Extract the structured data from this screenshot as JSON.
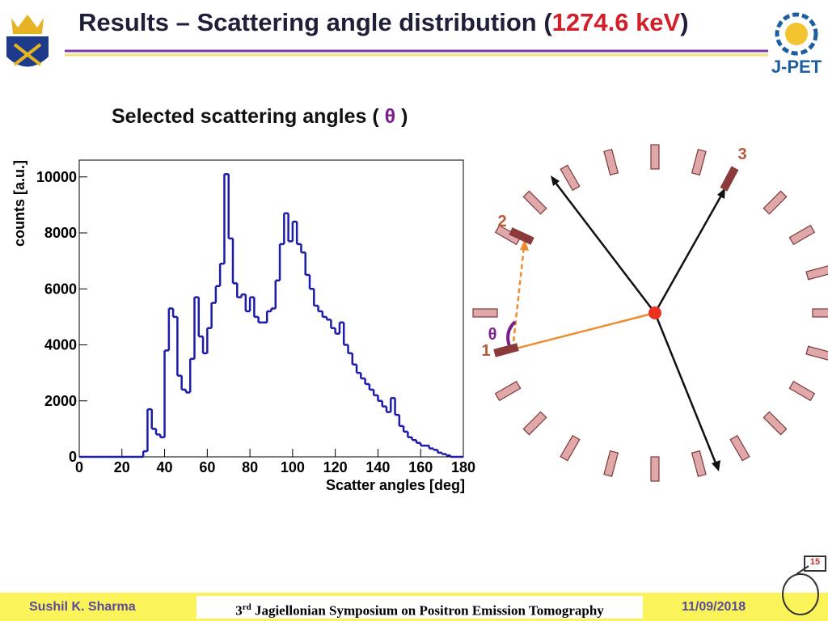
{
  "header": {
    "title_prefix": "Results – Scattering angle distribution (",
    "title_energy": "1274.6 keV",
    "title_suffix": ")",
    "logo_text": "J-PET"
  },
  "subtitle": {
    "prefix": "Selected scattering angles ( ",
    "symbol": "θ",
    "suffix": " )"
  },
  "diagram": {
    "labels": [
      "1",
      "2",
      "3"
    ],
    "angle": "θ"
  },
  "footer": {
    "author": "Sushil K. Sharma",
    "event_sup": "rd",
    "event_num": "3",
    "event": " Jagiellonian Symposium on Positron Emission Tomography",
    "date": "11/09/2018",
    "page": "15"
  },
  "chart_data": {
    "type": "histogram",
    "x_label": "Scatter angles [deg]",
    "y_label": "counts [a.u.]",
    "color": "#1c1ca8",
    "bins": [
      0,
      2,
      4,
      6,
      8,
      10,
      12,
      14,
      16,
      18,
      20,
      22,
      24,
      26,
      28,
      30,
      32,
      34,
      36,
      38,
      40,
      42,
      44,
      46,
      48,
      50,
      52,
      54,
      56,
      58,
      60,
      62,
      64,
      66,
      68,
      70,
      72,
      74,
      76,
      78,
      80,
      82,
      84,
      86,
      88,
      90,
      92,
      94,
      96,
      98,
      100,
      102,
      104,
      106,
      108,
      110,
      112,
      114,
      116,
      118,
      120,
      122,
      124,
      126,
      128,
      130,
      132,
      134,
      136,
      138,
      140,
      142,
      144,
      146,
      148,
      150,
      152,
      154,
      156,
      158,
      160,
      162,
      164,
      166,
      168,
      170,
      172,
      174,
      176,
      178,
      180
    ],
    "counts": [
      0,
      0,
      0,
      0,
      0,
      0,
      0,
      0,
      0,
      0,
      0,
      0,
      0,
      0,
      0,
      200,
      1700,
      1000,
      800,
      700,
      3800,
      5300,
      5000,
      2900,
      2400,
      2300,
      3500,
      5700,
      4300,
      3700,
      4600,
      5500,
      6100,
      6900,
      10100,
      7800,
      6200,
      5700,
      5800,
      5200,
      5700,
      5000,
      4800,
      4800,
      5200,
      5300,
      6300,
      7600,
      8700,
      7700,
      8400,
      7600,
      7300,
      6500,
      6000,
      5400,
      5200,
      5000,
      4900,
      4600,
      4400,
      4800,
      4000,
      3700,
      3300,
      3000,
      2800,
      2600,
      2400,
      2200,
      2000,
      1800,
      1600,
      2100,
      1500,
      1100,
      900,
      700,
      600,
      500,
      400,
      400,
      300,
      250,
      150,
      100,
      50,
      0,
      0,
      0
    ],
    "xlim": [
      0,
      180
    ],
    "xticks": [
      0,
      20,
      40,
      60,
      80,
      100,
      120,
      140,
      160,
      180
    ],
    "ylim": [
      0,
      10600
    ],
    "yticks": [
      0,
      2000,
      4000,
      6000,
      8000,
      10000
    ]
  }
}
